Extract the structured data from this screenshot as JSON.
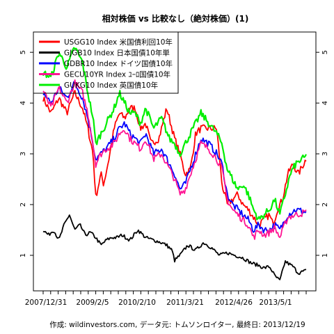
{
  "chart_data": {
    "type": "line",
    "title": "相対株価 vs 比較なし（絶対株価）(1)",
    "caption": "作成: wildinvestors.com, データ元: トムソンロイター, 最終日: 2013/12/19",
    "ylim": [
      0.3,
      5.4
    ],
    "yticks": [
      1,
      2,
      3,
      4,
      5
    ],
    "x_labels": [
      "2007/12/31",
      "2009/2/5",
      "2010/2/10",
      "2011/3/21",
      "2012/4/26",
      "2013/5/1"
    ],
    "legend_position": "top-left",
    "grid": false,
    "series": [
      {
        "name": "USGG10 Index 米国債利回10年",
        "color": "#ff0000",
        "x": [
          0,
          0.03,
          0.06,
          0.09,
          0.12,
          0.15,
          0.17,
          0.19,
          0.2,
          0.22,
          0.23,
          0.25,
          0.27,
          0.29,
          0.31,
          0.33,
          0.35,
          0.37,
          0.39,
          0.41,
          0.44,
          0.47,
          0.5,
          0.52,
          0.54,
          0.56,
          0.58,
          0.6,
          0.63,
          0.66,
          0.68,
          0.7,
          0.72,
          0.74,
          0.76,
          0.78,
          0.8,
          0.82,
          0.84,
          0.86,
          0.87,
          0.88,
          0.89,
          0.91,
          0.93,
          0.95,
          0.97,
          1.0
        ],
        "y": [
          4.1,
          3.8,
          4.1,
          3.8,
          4.2,
          3.9,
          3.5,
          3.0,
          2.15,
          2.6,
          2.4,
          2.9,
          3.5,
          3.8,
          3.7,
          3.9,
          3.9,
          3.5,
          3.6,
          3.2,
          3.3,
          3.9,
          3.3,
          3.0,
          2.6,
          2.7,
          3.4,
          3.5,
          3.5,
          3.5,
          2.4,
          2.0,
          2.1,
          2.2,
          2.0,
          1.9,
          1.75,
          1.6,
          1.7,
          1.8,
          1.65,
          1.7,
          1.9,
          2.1,
          2.6,
          2.8,
          2.6,
          2.9
        ]
      },
      {
        "name": "GJGB10 Index 日本国債10年単",
        "color": "#000000",
        "x": [
          0,
          0.02,
          0.04,
          0.06,
          0.08,
          0.1,
          0.12,
          0.14,
          0.16,
          0.18,
          0.2,
          0.22,
          0.24,
          0.26,
          0.28,
          0.3,
          0.33,
          0.36,
          0.39,
          0.42,
          0.45,
          0.47,
          0.49,
          0.5,
          0.52,
          0.55,
          0.58,
          0.61,
          0.64,
          0.67,
          0.7,
          0.73,
          0.76,
          0.79,
          0.82,
          0.84,
          0.86,
          0.87,
          0.88,
          0.9,
          0.92,
          0.95,
          0.97,
          1.0
        ],
        "y": [
          1.5,
          1.4,
          1.5,
          1.3,
          1.6,
          1.8,
          1.5,
          1.6,
          1.4,
          1.45,
          1.35,
          1.2,
          1.3,
          1.35,
          1.35,
          1.4,
          1.3,
          1.5,
          1.35,
          1.3,
          1.25,
          1.2,
          1.1,
          0.9,
          1.0,
          1.2,
          1.1,
          1.25,
          1.15,
          1.0,
          1.05,
          1.0,
          0.95,
          0.85,
          0.8,
          0.75,
          0.78,
          0.7,
          0.6,
          0.5,
          0.88,
          0.78,
          0.65,
          0.7
        ]
      },
      {
        "name": "GDBR10 Index ドイツ国債10年",
        "color": "#0000ff",
        "x": [
          0,
          0.03,
          0.06,
          0.09,
          0.12,
          0.15,
          0.17,
          0.19,
          0.2,
          0.22,
          0.24,
          0.27,
          0.29,
          0.31,
          0.33,
          0.35,
          0.37,
          0.39,
          0.42,
          0.45,
          0.48,
          0.5,
          0.52,
          0.54,
          0.56,
          0.58,
          0.6,
          0.63,
          0.66,
          0.68,
          0.7,
          0.72,
          0.74,
          0.76,
          0.78,
          0.8,
          0.82,
          0.84,
          0.86,
          0.88,
          0.9,
          0.93,
          0.96,
          1.0
        ],
        "y": [
          4.2,
          4.0,
          4.3,
          4.1,
          4.4,
          4.1,
          3.7,
          3.2,
          2.9,
          3.0,
          3.1,
          3.3,
          3.5,
          3.6,
          3.4,
          3.3,
          3.2,
          3.4,
          3.0,
          3.1,
          2.8,
          2.6,
          2.3,
          2.4,
          2.7,
          3.0,
          3.3,
          3.2,
          3.0,
          2.8,
          2.2,
          2.0,
          1.9,
          1.8,
          1.7,
          1.5,
          1.6,
          1.5,
          1.5,
          1.6,
          1.5,
          1.8,
          1.9,
          1.85
        ]
      },
      {
        "name": "GECU10YR Index ﾕｰﾛ国債10年",
        "color": "#ff1493",
        "x": [
          0,
          0.03,
          0.06,
          0.09,
          0.12,
          0.15,
          0.17,
          0.19,
          0.2,
          0.22,
          0.24,
          0.27,
          0.29,
          0.31,
          0.33,
          0.35,
          0.37,
          0.39,
          0.42,
          0.45,
          0.48,
          0.5,
          0.52,
          0.54,
          0.56,
          0.58,
          0.6,
          0.63,
          0.66,
          0.68,
          0.7,
          0.72,
          0.74,
          0.76,
          0.78,
          0.8,
          0.82,
          0.84,
          0.86,
          0.88,
          0.9,
          0.93,
          0.96,
          1.0
        ],
        "y": [
          4.25,
          3.9,
          4.3,
          4.0,
          4.4,
          4.2,
          3.8,
          3.2,
          2.8,
          3.0,
          3.1,
          3.2,
          3.4,
          3.5,
          3.3,
          3.2,
          3.1,
          3.3,
          2.9,
          3.0,
          2.7,
          2.5,
          2.2,
          2.3,
          2.6,
          2.9,
          3.2,
          3.1,
          2.9,
          2.7,
          2.1,
          1.9,
          1.8,
          1.7,
          1.6,
          1.35,
          1.5,
          1.4,
          1.45,
          1.55,
          1.35,
          1.75,
          1.8,
          1.85
        ]
      },
      {
        "name": "GUKG10 Index 英国債10年",
        "color": "#00ee00",
        "x": [
          0,
          0.03,
          0.06,
          0.09,
          0.12,
          0.15,
          0.17,
          0.19,
          0.2,
          0.22,
          0.24,
          0.27,
          0.29,
          0.31,
          0.33,
          0.35,
          0.37,
          0.39,
          0.42,
          0.45,
          0.48,
          0.5,
          0.52,
          0.54,
          0.56,
          0.58,
          0.6,
          0.63,
          0.66,
          0.68,
          0.7,
          0.72,
          0.74,
          0.76,
          0.78,
          0.8,
          0.82,
          0.84,
          0.86,
          0.88,
          0.9,
          0.92,
          0.94,
          0.96,
          1.0
        ],
        "y": [
          4.6,
          4.5,
          5.0,
          4.7,
          5.1,
          4.8,
          4.2,
          3.7,
          3.2,
          3.4,
          3.6,
          3.9,
          4.2,
          4.0,
          3.8,
          3.8,
          3.6,
          3.9,
          3.5,
          3.7,
          3.3,
          3.2,
          3.0,
          3.2,
          3.4,
          3.6,
          3.8,
          3.6,
          3.4,
          3.2,
          2.7,
          2.5,
          2.3,
          2.4,
          2.2,
          1.9,
          1.7,
          1.8,
          1.9,
          2.1,
          1.8,
          2.2,
          2.6,
          2.8,
          2.95
        ]
      }
    ]
  }
}
